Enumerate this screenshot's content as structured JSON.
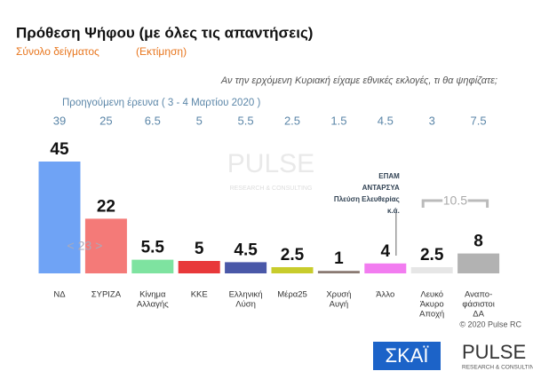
{
  "chart_data": {
    "type": "bar",
    "title": "Πρόθεση Ψήφου (με όλες τις απαντήσεις)",
    "subtitle": "Σύνολο δείγματος",
    "subtitle_note": "(Εκτίμηση)",
    "question": "Αν την ερχόμενη Κυριακή είχαμε εθνικές εκλογές, τι θα ψηφίζατε;",
    "previous_label": "Προηγούμενη έρευνα  ( 3 - 4  Μαρτίου 2020 )",
    "categories": [
      [
        "ΝΔ"
      ],
      [
        "ΣΥΡΙΖΑ"
      ],
      [
        "Κίνημα",
        "Αλλαγής"
      ],
      [
        "ΚΚΕ"
      ],
      [
        "Ελληνική",
        "Λύση"
      ],
      [
        "Μέρα25"
      ],
      [
        "Χρυσή",
        "Αυγή"
      ],
      [
        "Άλλο"
      ],
      [
        "Λευκό",
        "Άκυρο",
        "Αποχή"
      ],
      [
        "Αναπο-",
        "φάσιστοι",
        "ΔΑ"
      ]
    ],
    "values": [
      45,
      22,
      5.5,
      5,
      4.5,
      2.5,
      1,
      4,
      2.5,
      8
    ],
    "previous_values": [
      39,
      25,
      6.5,
      5,
      5.5,
      2.5,
      1.5,
      4.5,
      3,
      7.5
    ],
    "colors": [
      "#6fa3f5",
      "#f47a78",
      "#7ee3a0",
      "#e8383a",
      "#4a58a8",
      "#c8cc2c",
      "#8a7a72",
      "#f27cf0",
      "#e6e6e6",
      "#b2b2b2"
    ],
    "annotations": {
      "syriza_range": "< 23 >",
      "undecided_sum": 10.5,
      "other_parties": [
        "ΕΠΑΜ",
        "ΑΝΤΑΡΣΥΑ",
        "Πλεύση Ελευθερίας",
        "κ.ά."
      ]
    },
    "copyright": "© 2020 Pulse RC",
    "logos": {
      "skai": "ΣΚΑΪ",
      "pulse": "PULSE",
      "pulse_sub": "RESEARCH & CONSULTING"
    }
  }
}
